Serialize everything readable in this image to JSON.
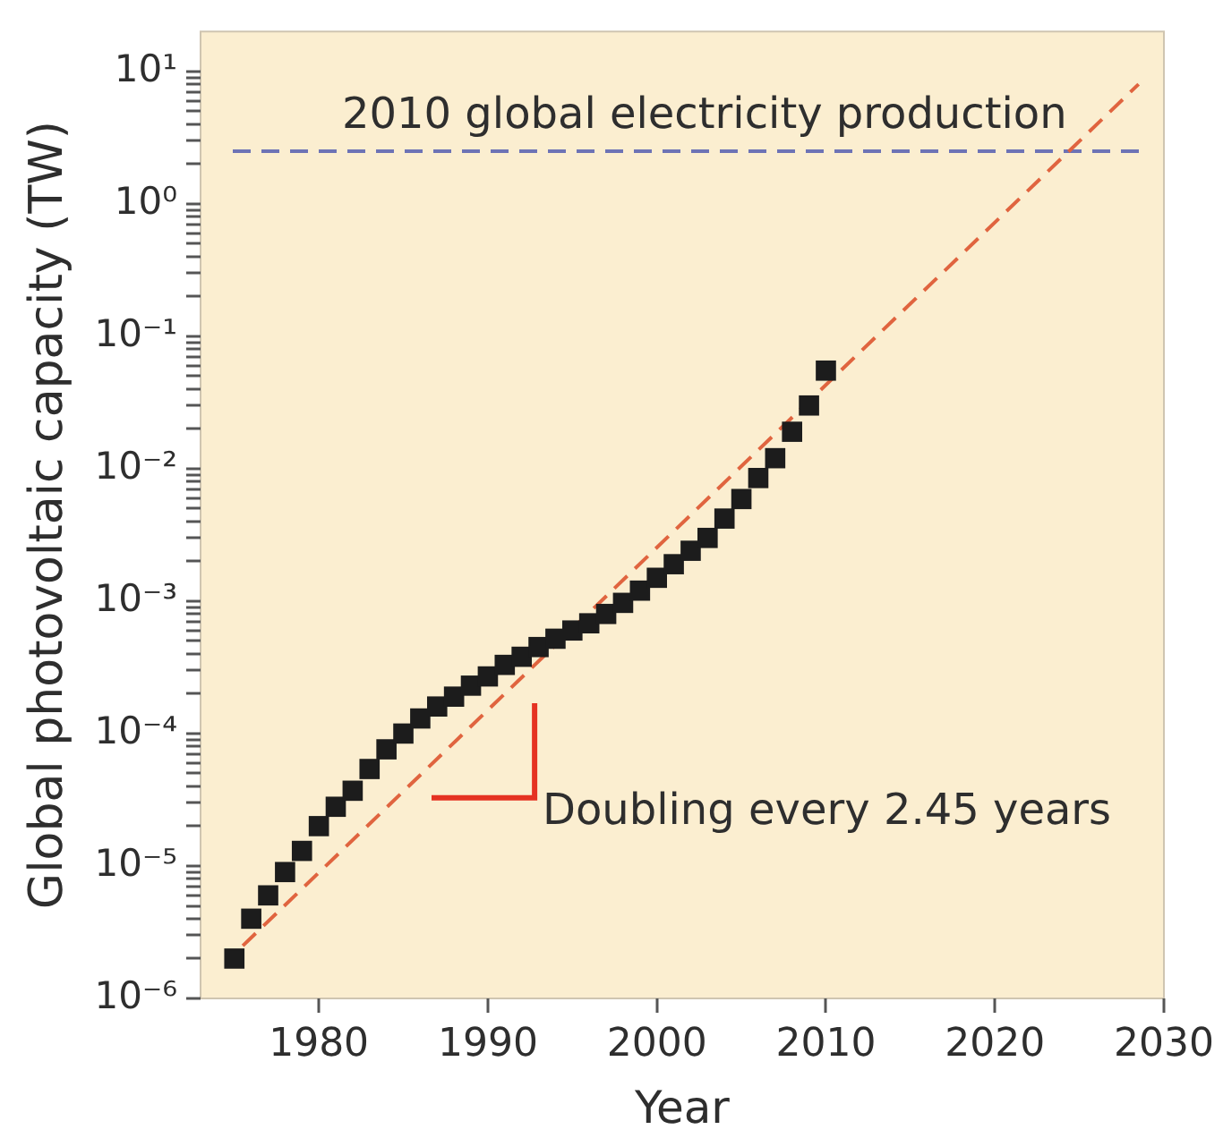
{
  "chart_data": {
    "type": "scatter",
    "xlabel": "Year",
    "ylabel": "Global photovoltaic capacity (TW)",
    "x": [
      1975,
      1976,
      1977,
      1978,
      1979,
      1980,
      1981,
      1982,
      1983,
      1984,
      1985,
      1986,
      1987,
      1988,
      1989,
      1990,
      1991,
      1992,
      1993,
      1994,
      1995,
      1996,
      1997,
      1998,
      1999,
      2000,
      2001,
      2002,
      2003,
      2004,
      2005,
      2006,
      2007,
      2008,
      2009,
      2010
    ],
    "series": [
      {
        "type": "scatter",
        "color": "#1c1c1c",
        "values": [
          2e-06,
          4e-06,
          6e-06,
          9e-06,
          1.3e-05,
          2e-05,
          2.8e-05,
          3.7e-05,
          5.4e-05,
          7.6e-05,
          0.0001,
          0.00013,
          0.00016,
          0.00019,
          0.00023,
          0.00027,
          0.00033,
          0.00038,
          0.00045,
          0.00052,
          0.0006,
          0.00068,
          0.0008,
          0.00097,
          0.0012,
          0.0015,
          0.0019,
          0.0024,
          0.003,
          0.0042,
          0.0059,
          0.0085,
          0.012,
          0.019,
          0.03,
          0.055
        ]
      },
      {
        "type": "line",
        "color": "#e0643f",
        "line_style": "dashed",
        "marker": "none",
        "x": [
          1975.5,
          2028.5
        ],
        "values": [
          2.5e-06,
          8
        ]
      }
    ],
    "marker": "square",
    "log": "y",
    "grid": false,
    "xlim": [
      1973,
      2030
    ],
    "xticks": [
      1980,
      1990,
      2000,
      2010,
      2020,
      2030
    ],
    "ylim": [
      1e-06,
      20
    ],
    "yticks": [
      {
        "value": 1e-06,
        "label": "10⁻⁶"
      },
      {
        "value": 2e-06,
        "label": null
      },
      {
        "value": 3e-06,
        "label": null
      },
      {
        "value": 4e-06,
        "label": null
      },
      {
        "value": 5e-06,
        "label": null
      },
      {
        "value": 6e-06,
        "label": null
      },
      {
        "value": 7e-06,
        "label": null
      },
      {
        "value": 8e-06,
        "label": null
      },
      {
        "value": 9e-06,
        "label": null
      },
      {
        "value": 1e-05,
        "label": "10⁻⁵"
      },
      {
        "value": 2e-05,
        "label": null
      },
      {
        "value": 3e-05,
        "label": null
      },
      {
        "value": 4e-05,
        "label": null
      },
      {
        "value": 5e-05,
        "label": null
      },
      {
        "value": 6e-05,
        "label": null
      },
      {
        "value": 7e-05,
        "label": null
      },
      {
        "value": 8e-05,
        "label": null
      },
      {
        "value": 9e-05,
        "label": null
      },
      {
        "value": 0.0001,
        "label": "10⁻⁴"
      },
      {
        "value": 0.0002,
        "label": null
      },
      {
        "value": 0.0003,
        "label": null
      },
      {
        "value": 0.0004,
        "label": null
      },
      {
        "value": 0.0005,
        "label": null
      },
      {
        "value": 0.0006,
        "label": null
      },
      {
        "value": 0.0007,
        "label": null
      },
      {
        "value": 0.0008,
        "label": null
      },
      {
        "value": 0.0009,
        "label": null
      },
      {
        "value": 0.001,
        "label": "10⁻³"
      },
      {
        "value": 0.002,
        "label": null
      },
      {
        "value": 0.003,
        "label": null
      },
      {
        "value": 0.004,
        "label": null
      },
      {
        "value": 0.005,
        "label": null
      },
      {
        "value": 0.006,
        "label": null
      },
      {
        "value": 0.007,
        "label": null
      },
      {
        "value": 0.008,
        "label": null
      },
      {
        "value": 0.009,
        "label": null
      },
      {
        "value": 0.01,
        "label": "10⁻²"
      },
      {
        "value": 0.02,
        "label": null
      },
      {
        "value": 0.03,
        "label": null
      },
      {
        "value": 0.04,
        "label": null
      },
      {
        "value": 0.05,
        "label": null
      },
      {
        "value": 0.06,
        "label": null
      },
      {
        "value": 0.07,
        "label": null
      },
      {
        "value": 0.08,
        "label": null
      },
      {
        "value": 0.09,
        "label": null
      },
      {
        "value": 0.1,
        "label": "10⁻¹"
      },
      {
        "value": 0.2,
        "label": null
      },
      {
        "value": 0.3,
        "label": null
      },
      {
        "value": 0.4,
        "label": null
      },
      {
        "value": 0.5,
        "label": null
      },
      {
        "value": 0.6,
        "label": null
      },
      {
        "value": 0.7,
        "label": null
      },
      {
        "value": 0.8,
        "label": null
      },
      {
        "value": 0.9,
        "label": null
      },
      {
        "value": 1,
        "label": "10⁰"
      },
      {
        "value": 2,
        "label": null
      },
      {
        "value": 3,
        "label": null
      },
      {
        "value": 4,
        "label": null
      },
      {
        "value": 5,
        "label": null
      },
      {
        "value": 6,
        "label": null
      },
      {
        "value": 7,
        "label": null
      },
      {
        "value": 8,
        "label": null
      },
      {
        "value": 9,
        "label": null
      },
      {
        "value": 10,
        "label": "10¹"
      }
    ],
    "ref_lines": [
      {
        "axis": "y",
        "value": 2.5,
        "label": "2010 global electricity production",
        "color": "#6d73b5",
        "line_style": "dashed"
      }
    ],
    "annotations": [
      "Doubling every 2.45 years"
    ]
  }
}
